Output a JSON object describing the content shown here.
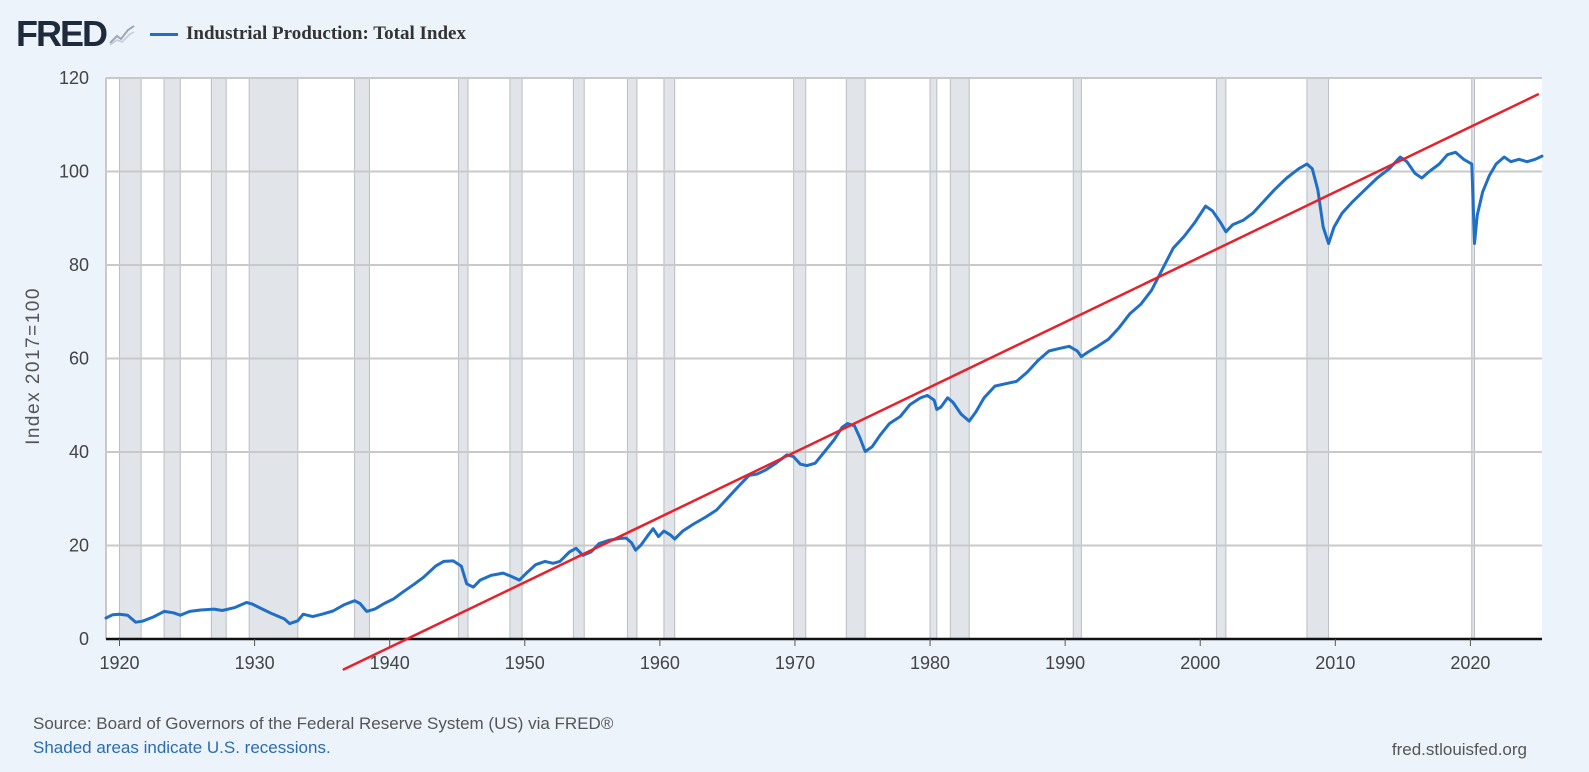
{
  "header": {
    "logo_text": "FRED",
    "logo_icon": "line-chart-icon"
  },
  "chart_data": {
    "type": "line",
    "title": "Industrial Production: Total Index",
    "ylabel": "Index 2017=100",
    "xlabel": "",
    "xlim": [
      1919,
      2025.3
    ],
    "ylim": [
      0,
      120
    ],
    "yticks": [
      0,
      20,
      40,
      60,
      80,
      100,
      120
    ],
    "xticks": [
      1920,
      1930,
      1940,
      1950,
      1960,
      1970,
      1980,
      1990,
      2000,
      2010,
      2020
    ],
    "grid": true,
    "legend": "top-left",
    "series": [
      {
        "name": "Industrial Production: Total Index",
        "color": "#1f6fc6",
        "points": [
          [
            1919.0,
            4.5
          ],
          [
            1919.5,
            5.2
          ],
          [
            1920.0,
            5.3
          ],
          [
            1920.6,
            5.1
          ],
          [
            1921.2,
            3.6
          ],
          [
            1921.7,
            3.8
          ],
          [
            1922.5,
            4.7
          ],
          [
            1923.3,
            5.9
          ],
          [
            1924.0,
            5.6
          ],
          [
            1924.5,
            5.1
          ],
          [
            1925.2,
            5.9
          ],
          [
            1926.0,
            6.2
          ],
          [
            1927.0,
            6.4
          ],
          [
            1927.6,
            6.1
          ],
          [
            1928.5,
            6.7
          ],
          [
            1929.4,
            7.8
          ],
          [
            1929.8,
            7.5
          ],
          [
            1930.5,
            6.5
          ],
          [
            1931.3,
            5.4
          ],
          [
            1932.2,
            4.3
          ],
          [
            1932.6,
            3.3
          ],
          [
            1933.2,
            3.9
          ],
          [
            1933.6,
            5.3
          ],
          [
            1934.3,
            4.8
          ],
          [
            1935.0,
            5.3
          ],
          [
            1935.8,
            6.0
          ],
          [
            1936.6,
            7.3
          ],
          [
            1937.4,
            8.2
          ],
          [
            1937.8,
            7.6
          ],
          [
            1938.3,
            5.9
          ],
          [
            1938.9,
            6.4
          ],
          [
            1939.6,
            7.6
          ],
          [
            1940.3,
            8.6
          ],
          [
            1941.0,
            10.1
          ],
          [
            1941.8,
            11.7
          ],
          [
            1942.5,
            13.2
          ],
          [
            1943.4,
            15.6
          ],
          [
            1944.0,
            16.6
          ],
          [
            1944.7,
            16.7
          ],
          [
            1945.3,
            15.6
          ],
          [
            1945.7,
            11.8
          ],
          [
            1946.2,
            11.1
          ],
          [
            1946.7,
            12.6
          ],
          [
            1947.5,
            13.6
          ],
          [
            1948.4,
            14.1
          ],
          [
            1949.0,
            13.4
          ],
          [
            1949.6,
            12.6
          ],
          [
            1950.2,
            14.3
          ],
          [
            1950.8,
            15.9
          ],
          [
            1951.5,
            16.6
          ],
          [
            1952.1,
            16.2
          ],
          [
            1952.6,
            16.6
          ],
          [
            1953.3,
            18.6
          ],
          [
            1953.8,
            19.4
          ],
          [
            1954.3,
            17.9
          ],
          [
            1954.9,
            18.6
          ],
          [
            1955.5,
            20.4
          ],
          [
            1956.2,
            21.1
          ],
          [
            1957.0,
            21.5
          ],
          [
            1957.5,
            21.6
          ],
          [
            1957.9,
            20.6
          ],
          [
            1958.2,
            19.0
          ],
          [
            1958.6,
            20.1
          ],
          [
            1959.1,
            22.1
          ],
          [
            1959.5,
            23.6
          ],
          [
            1959.9,
            21.9
          ],
          [
            1960.3,
            23.1
          ],
          [
            1960.8,
            22.2
          ],
          [
            1961.1,
            21.4
          ],
          [
            1961.7,
            23.1
          ],
          [
            1962.5,
            24.6
          ],
          [
            1963.4,
            26.1
          ],
          [
            1964.2,
            27.6
          ],
          [
            1965.0,
            30.1
          ],
          [
            1965.8,
            32.6
          ],
          [
            1966.6,
            35.0
          ],
          [
            1967.2,
            35.3
          ],
          [
            1967.8,
            36.1
          ],
          [
            1968.6,
            37.6
          ],
          [
            1969.4,
            39.4
          ],
          [
            1969.9,
            39.0
          ],
          [
            1970.4,
            37.4
          ],
          [
            1970.9,
            37.1
          ],
          [
            1971.5,
            37.6
          ],
          [
            1972.2,
            40.1
          ],
          [
            1972.9,
            42.6
          ],
          [
            1973.5,
            45.3
          ],
          [
            1973.9,
            46.1
          ],
          [
            1974.4,
            45.6
          ],
          [
            1974.8,
            43.1
          ],
          [
            1975.2,
            40.1
          ],
          [
            1975.7,
            41.1
          ],
          [
            1976.3,
            43.6
          ],
          [
            1977.0,
            46.1
          ],
          [
            1977.8,
            47.6
          ],
          [
            1978.5,
            50.1
          ],
          [
            1979.3,
            51.6
          ],
          [
            1979.8,
            52.1
          ],
          [
            1980.3,
            51.1
          ],
          [
            1980.5,
            49.1
          ],
          [
            1980.8,
            49.6
          ],
          [
            1981.3,
            51.6
          ],
          [
            1981.7,
            50.6
          ],
          [
            1982.3,
            48.1
          ],
          [
            1982.9,
            46.6
          ],
          [
            1983.4,
            48.6
          ],
          [
            1984.0,
            51.6
          ],
          [
            1984.8,
            54.1
          ],
          [
            1985.6,
            54.6
          ],
          [
            1986.4,
            55.1
          ],
          [
            1987.2,
            57.1
          ],
          [
            1988.0,
            59.6
          ],
          [
            1988.8,
            61.6
          ],
          [
            1989.5,
            62.1
          ],
          [
            1990.3,
            62.6
          ],
          [
            1990.9,
            61.6
          ],
          [
            1991.2,
            60.4
          ],
          [
            1991.7,
            61.4
          ],
          [
            1992.4,
            62.6
          ],
          [
            1993.2,
            64.1
          ],
          [
            1994.0,
            66.6
          ],
          [
            1994.8,
            69.6
          ],
          [
            1995.6,
            71.6
          ],
          [
            1996.4,
            74.6
          ],
          [
            1997.2,
            79.1
          ],
          [
            1998.0,
            83.6
          ],
          [
            1998.8,
            86.1
          ],
          [
            1999.6,
            89.1
          ],
          [
            2000.4,
            92.6
          ],
          [
            2000.9,
            91.6
          ],
          [
            2001.5,
            89.1
          ],
          [
            2001.9,
            87.1
          ],
          [
            2002.4,
            88.6
          ],
          [
            2003.2,
            89.6
          ],
          [
            2003.9,
            91.1
          ],
          [
            2004.7,
            93.6
          ],
          [
            2005.5,
            96.1
          ],
          [
            2006.4,
            98.6
          ],
          [
            2007.3,
            100.6
          ],
          [
            2007.9,
            101.6
          ],
          [
            2008.3,
            100.6
          ],
          [
            2008.7,
            96.1
          ],
          [
            2009.1,
            88.1
          ],
          [
            2009.5,
            84.6
          ],
          [
            2009.9,
            88.1
          ],
          [
            2010.5,
            91.1
          ],
          [
            2011.3,
            93.6
          ],
          [
            2012.2,
            96.1
          ],
          [
            2013.1,
            98.6
          ],
          [
            2014.0,
            100.6
          ],
          [
            2014.8,
            103.1
          ],
          [
            2015.3,
            102.1
          ],
          [
            2015.9,
            99.6
          ],
          [
            2016.4,
            98.6
          ],
          [
            2017.0,
            100.1
          ],
          [
            2017.7,
            101.6
          ],
          [
            2018.3,
            103.6
          ],
          [
            2018.9,
            104.1
          ],
          [
            2019.5,
            102.6
          ],
          [
            2020.1,
            101.6
          ],
          [
            2020.3,
            84.6
          ],
          [
            2020.5,
            90.6
          ],
          [
            2020.9,
            95.6
          ],
          [
            2021.4,
            99.1
          ],
          [
            2021.9,
            101.6
          ],
          [
            2022.5,
            103.1
          ],
          [
            2023.0,
            102.1
          ],
          [
            2023.6,
            102.6
          ],
          [
            2024.2,
            102.1
          ],
          [
            2024.8,
            102.6
          ],
          [
            2025.3,
            103.3
          ]
        ]
      },
      {
        "name": "Trend line (annotation)",
        "color": "#e8202a",
        "points": [
          [
            1936.6,
            -6.5
          ],
          [
            2025.0,
            116.5
          ]
        ]
      }
    ],
    "recessions": [
      [
        1920.0,
        1921.6
      ],
      [
        1923.3,
        1924.5
      ],
      [
        1926.8,
        1927.9
      ],
      [
        1929.6,
        1933.2
      ],
      [
        1937.4,
        1938.5
      ],
      [
        1945.1,
        1945.8
      ],
      [
        1948.9,
        1949.8
      ],
      [
        1953.6,
        1954.4
      ],
      [
        1957.6,
        1958.3
      ],
      [
        1960.3,
        1961.1
      ],
      [
        1969.9,
        1970.8
      ],
      [
        1973.8,
        1975.2
      ],
      [
        1980.0,
        1980.5
      ],
      [
        1981.5,
        1982.9
      ],
      [
        1990.6,
        1991.2
      ],
      [
        2001.2,
        2001.9
      ],
      [
        2007.9,
        2009.5
      ],
      [
        2020.1,
        2020.3
      ]
    ]
  },
  "footer": {
    "source": "Source: Board of Governors of the Federal Reserve System (US) via FRED®",
    "shaded_note": "Shaded areas indicate U.S. recessions.",
    "url": "fred.stlouisfed.org"
  },
  "colors": {
    "background": "#ecf3fb",
    "plot_bg": "#ffffff",
    "grid": "#c9c9c9",
    "recession": "#e1e4e8",
    "line": "#1f6fc6",
    "annotation": "#e8202a",
    "link": "#2b6cb0"
  }
}
